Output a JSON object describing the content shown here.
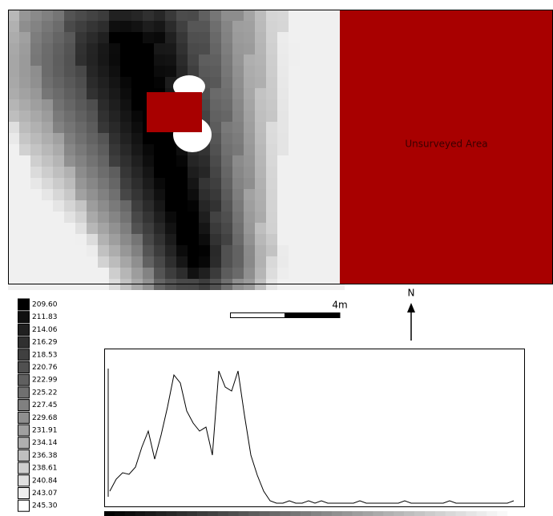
{
  "map": {
    "annotation": "Unsurveyed Area"
  },
  "legend": {
    "labels": [
      "209.60",
      "211.83",
      "214.06",
      "216.29",
      "218.53",
      "220.76",
      "222.99",
      "225.22",
      "227.45",
      "229.68",
      "231.91",
      "234.14",
      "236.38",
      "238.61",
      "240.84",
      "243.07",
      "245.30"
    ]
  },
  "scale_bar": {
    "label": "4m"
  },
  "north_arrow": {
    "label": "N"
  },
  "histogram": {
    "values": [
      15,
      30,
      38,
      36,
      45,
      70,
      90,
      55,
      85,
      120,
      160,
      150,
      115,
      100,
      90,
      95,
      60,
      165,
      145,
      140,
      165,
      110,
      60,
      35,
      15,
      3,
      0,
      0,
      3,
      0,
      0,
      3,
      0,
      3,
      0,
      0,
      0,
      0,
      0,
      3,
      0,
      0,
      0,
      0,
      0,
      0,
      3,
      0,
      0,
      0,
      0,
      0,
      0,
      3,
      0,
      0,
      0,
      0,
      0,
      0,
      0,
      0,
      0,
      3
    ]
  }
}
